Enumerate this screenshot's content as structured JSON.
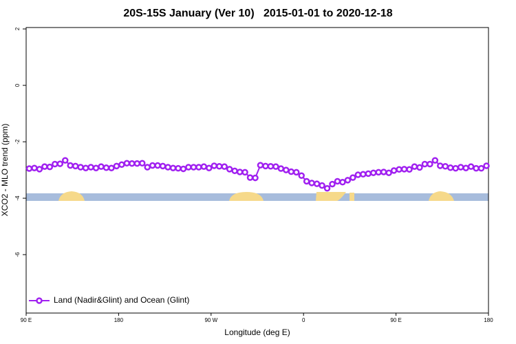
{
  "chart_data": {
    "type": "line",
    "title": "20S-15S January (Ver 10)   2015-01-01 to 2020-12-18",
    "x_label": "Longitude (deg E)",
    "y_label": "XCO2 - MLO trend (ppm)",
    "xlim": [
      90,
      540
    ],
    "ylim": [
      -8.07,
      2.05
    ],
    "xticks": [
      {
        "value": 90,
        "label": "90 E"
      },
      180,
      {
        "value": 270,
        "label": "90 W"
      },
      {
        "value": 360,
        "label": "0"
      },
      {
        "value": 450,
        "label": "90 E"
      },
      {
        "value": 540,
        "label": "180"
      }
    ],
    "yticks": [
      -6,
      -4,
      -2,
      0,
      2
    ],
    "grid": false,
    "legend_position": "bottom-left",
    "x": [
      93,
      98,
      103,
      108,
      113,
      118,
      123,
      128,
      133,
      138,
      143,
      148,
      153,
      158,
      163,
      168,
      173,
      178,
      183,
      188,
      193,
      198,
      203,
      208,
      213,
      218,
      223,
      228,
      233,
      238,
      243,
      248,
      253,
      258,
      263,
      268,
      273,
      278,
      283,
      288,
      293,
      298,
      303,
      308,
      313,
      318,
      323,
      328,
      333,
      338,
      343,
      348,
      353,
      358,
      363,
      368,
      373,
      378,
      383,
      388,
      393,
      398,
      403,
      408,
      413,
      418,
      423,
      428,
      433,
      438,
      443,
      448,
      453,
      458,
      463,
      468,
      473,
      478,
      483,
      488,
      493,
      498,
      503,
      508,
      513,
      518,
      523,
      528,
      533,
      538
    ],
    "series": [
      {
        "name": "Land (Nadir&Glint) and Ocean (Glint)",
        "color": "#a020f0",
        "values": [
          -2.95,
          -2.93,
          -2.97,
          -2.88,
          -2.89,
          -2.79,
          -2.78,
          -2.66,
          -2.84,
          -2.86,
          -2.9,
          -2.93,
          -2.9,
          -2.93,
          -2.88,
          -2.92,
          -2.93,
          -2.86,
          -2.81,
          -2.76,
          -2.77,
          -2.77,
          -2.76,
          -2.9,
          -2.84,
          -2.84,
          -2.86,
          -2.9,
          -2.93,
          -2.94,
          -2.96,
          -2.9,
          -2.9,
          -2.9,
          -2.88,
          -2.93,
          -2.85,
          -2.87,
          -2.88,
          -2.97,
          -3.03,
          -3.07,
          -3.08,
          -3.27,
          -3.28,
          -2.83,
          -2.86,
          -2.87,
          -2.88,
          -2.95,
          -3.0,
          -3.06,
          -3.08,
          -3.2,
          -3.4,
          -3.46,
          -3.49,
          -3.55,
          -3.65,
          -3.5,
          -3.4,
          -3.43,
          -3.36,
          -3.27,
          -3.17,
          -3.15,
          -3.13,
          -3.1,
          -3.08,
          -3.07,
          -3.1,
          -3.02,
          -2.98,
          -2.97,
          -2.98,
          -2.88,
          -2.91,
          -2.79,
          -2.79,
          -2.66,
          -2.85,
          -2.87,
          -2.92,
          -2.94,
          -2.9,
          -2.93,
          -2.88,
          -2.94,
          -2.94,
          -2.85
        ]
      }
    ]
  }
}
